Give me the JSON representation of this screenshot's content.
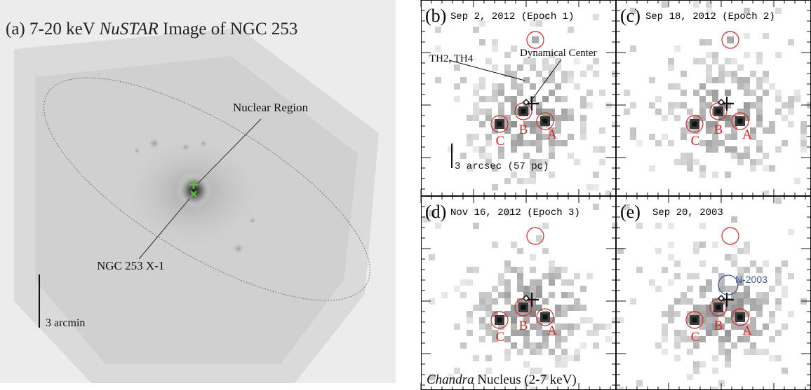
{
  "left": {
    "title_prefix": "(a) 7-20 keV ",
    "title_italic": "NuSTAR",
    "title_suffix": " Image of NGC 253",
    "nuclear_region": "Nuclear Region",
    "x1_label": "NGC 253 X-1",
    "scale_label": "3 arcmin"
  },
  "panels": [
    {
      "letter": "(b)",
      "date": "Sep 2, 2012 (Epoch 1)"
    },
    {
      "letter": "(c)",
      "date": "Sep 18, 2012 (Epoch 2)"
    },
    {
      "letter": "(d)",
      "date": "Nov 16, 2012 (Epoch 3)"
    },
    {
      "letter": "(e)",
      "date": "Sep 20, 2003"
    }
  ],
  "annotations": {
    "th": "TH2, TH4",
    "dyn": "Dynamical Center",
    "scale": "3 arcsec (57 pc)",
    "n2003": "N-2003",
    "chandra_italic": "Chandra",
    "chandra_rest": " Nucleus (2-7 keV)"
  },
  "sources": [
    "A",
    "B",
    "C"
  ],
  "colors": {
    "source_circle": "#d9231f",
    "n2003": "#3b55a0",
    "marker": "#5bbf3a"
  }
}
